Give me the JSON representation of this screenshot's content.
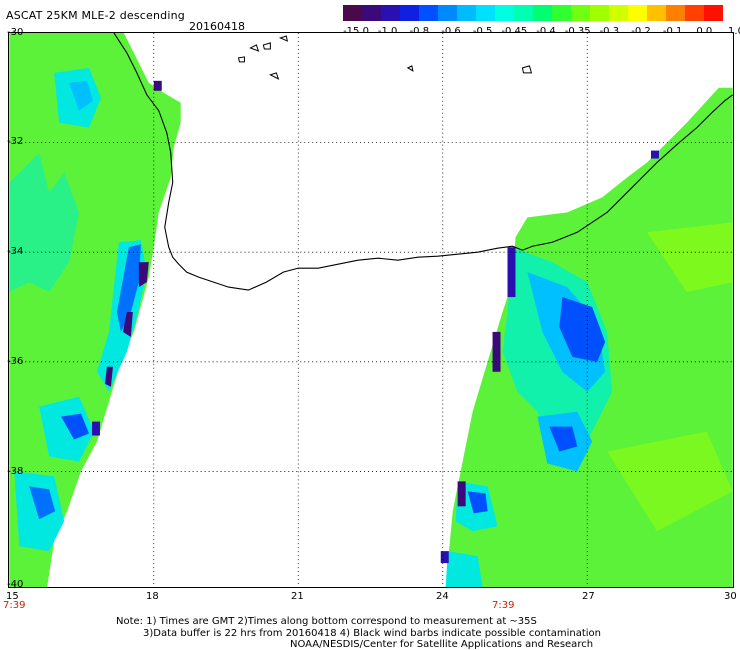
{
  "header": {
    "title": "ASCAT 25KM MLE-2 descending",
    "date": "20160418"
  },
  "colorbar": {
    "colors": [
      "#4a0a4a",
      "#3a0a7a",
      "#2a10b0",
      "#1020e0",
      "#0050ff",
      "#0088ff",
      "#00bbff",
      "#00e0ff",
      "#00ffe0",
      "#00ffb0",
      "#00ff70",
      "#30ff30",
      "#70ff10",
      "#a0ff00",
      "#d0ff00",
      "#ffff00",
      "#ffc000",
      "#ff8000",
      "#ff4000",
      "#ff1000"
    ],
    "labels": [
      "-15.0",
      "-1.0",
      "-0.8",
      "-0.6",
      "-0.5",
      "-0.45",
      "-0.4",
      "-0.35",
      "-0.3",
      "-0.2",
      "-0.1",
      "0.0",
      "1.0"
    ]
  },
  "map": {
    "lat_labels": [
      "-30",
      "-32",
      "-34",
      "-36",
      "-38",
      "-40"
    ],
    "lon_labels": [
      "15",
      "18",
      "21",
      "24",
      "27",
      "30"
    ],
    "pass_times": [
      "7:39",
      "7:39"
    ]
  },
  "notes": {
    "line1": "Note: 1) Times are GMT 2)Times along bottom correspond to measurement at ~35S",
    "line2": "3)Data buffer is 22 hrs from 20160418 4) Black wind barbs indicate possible contamination",
    "line3": "NOAA/NESDIS/Center for Satellite Applications and Research"
  }
}
